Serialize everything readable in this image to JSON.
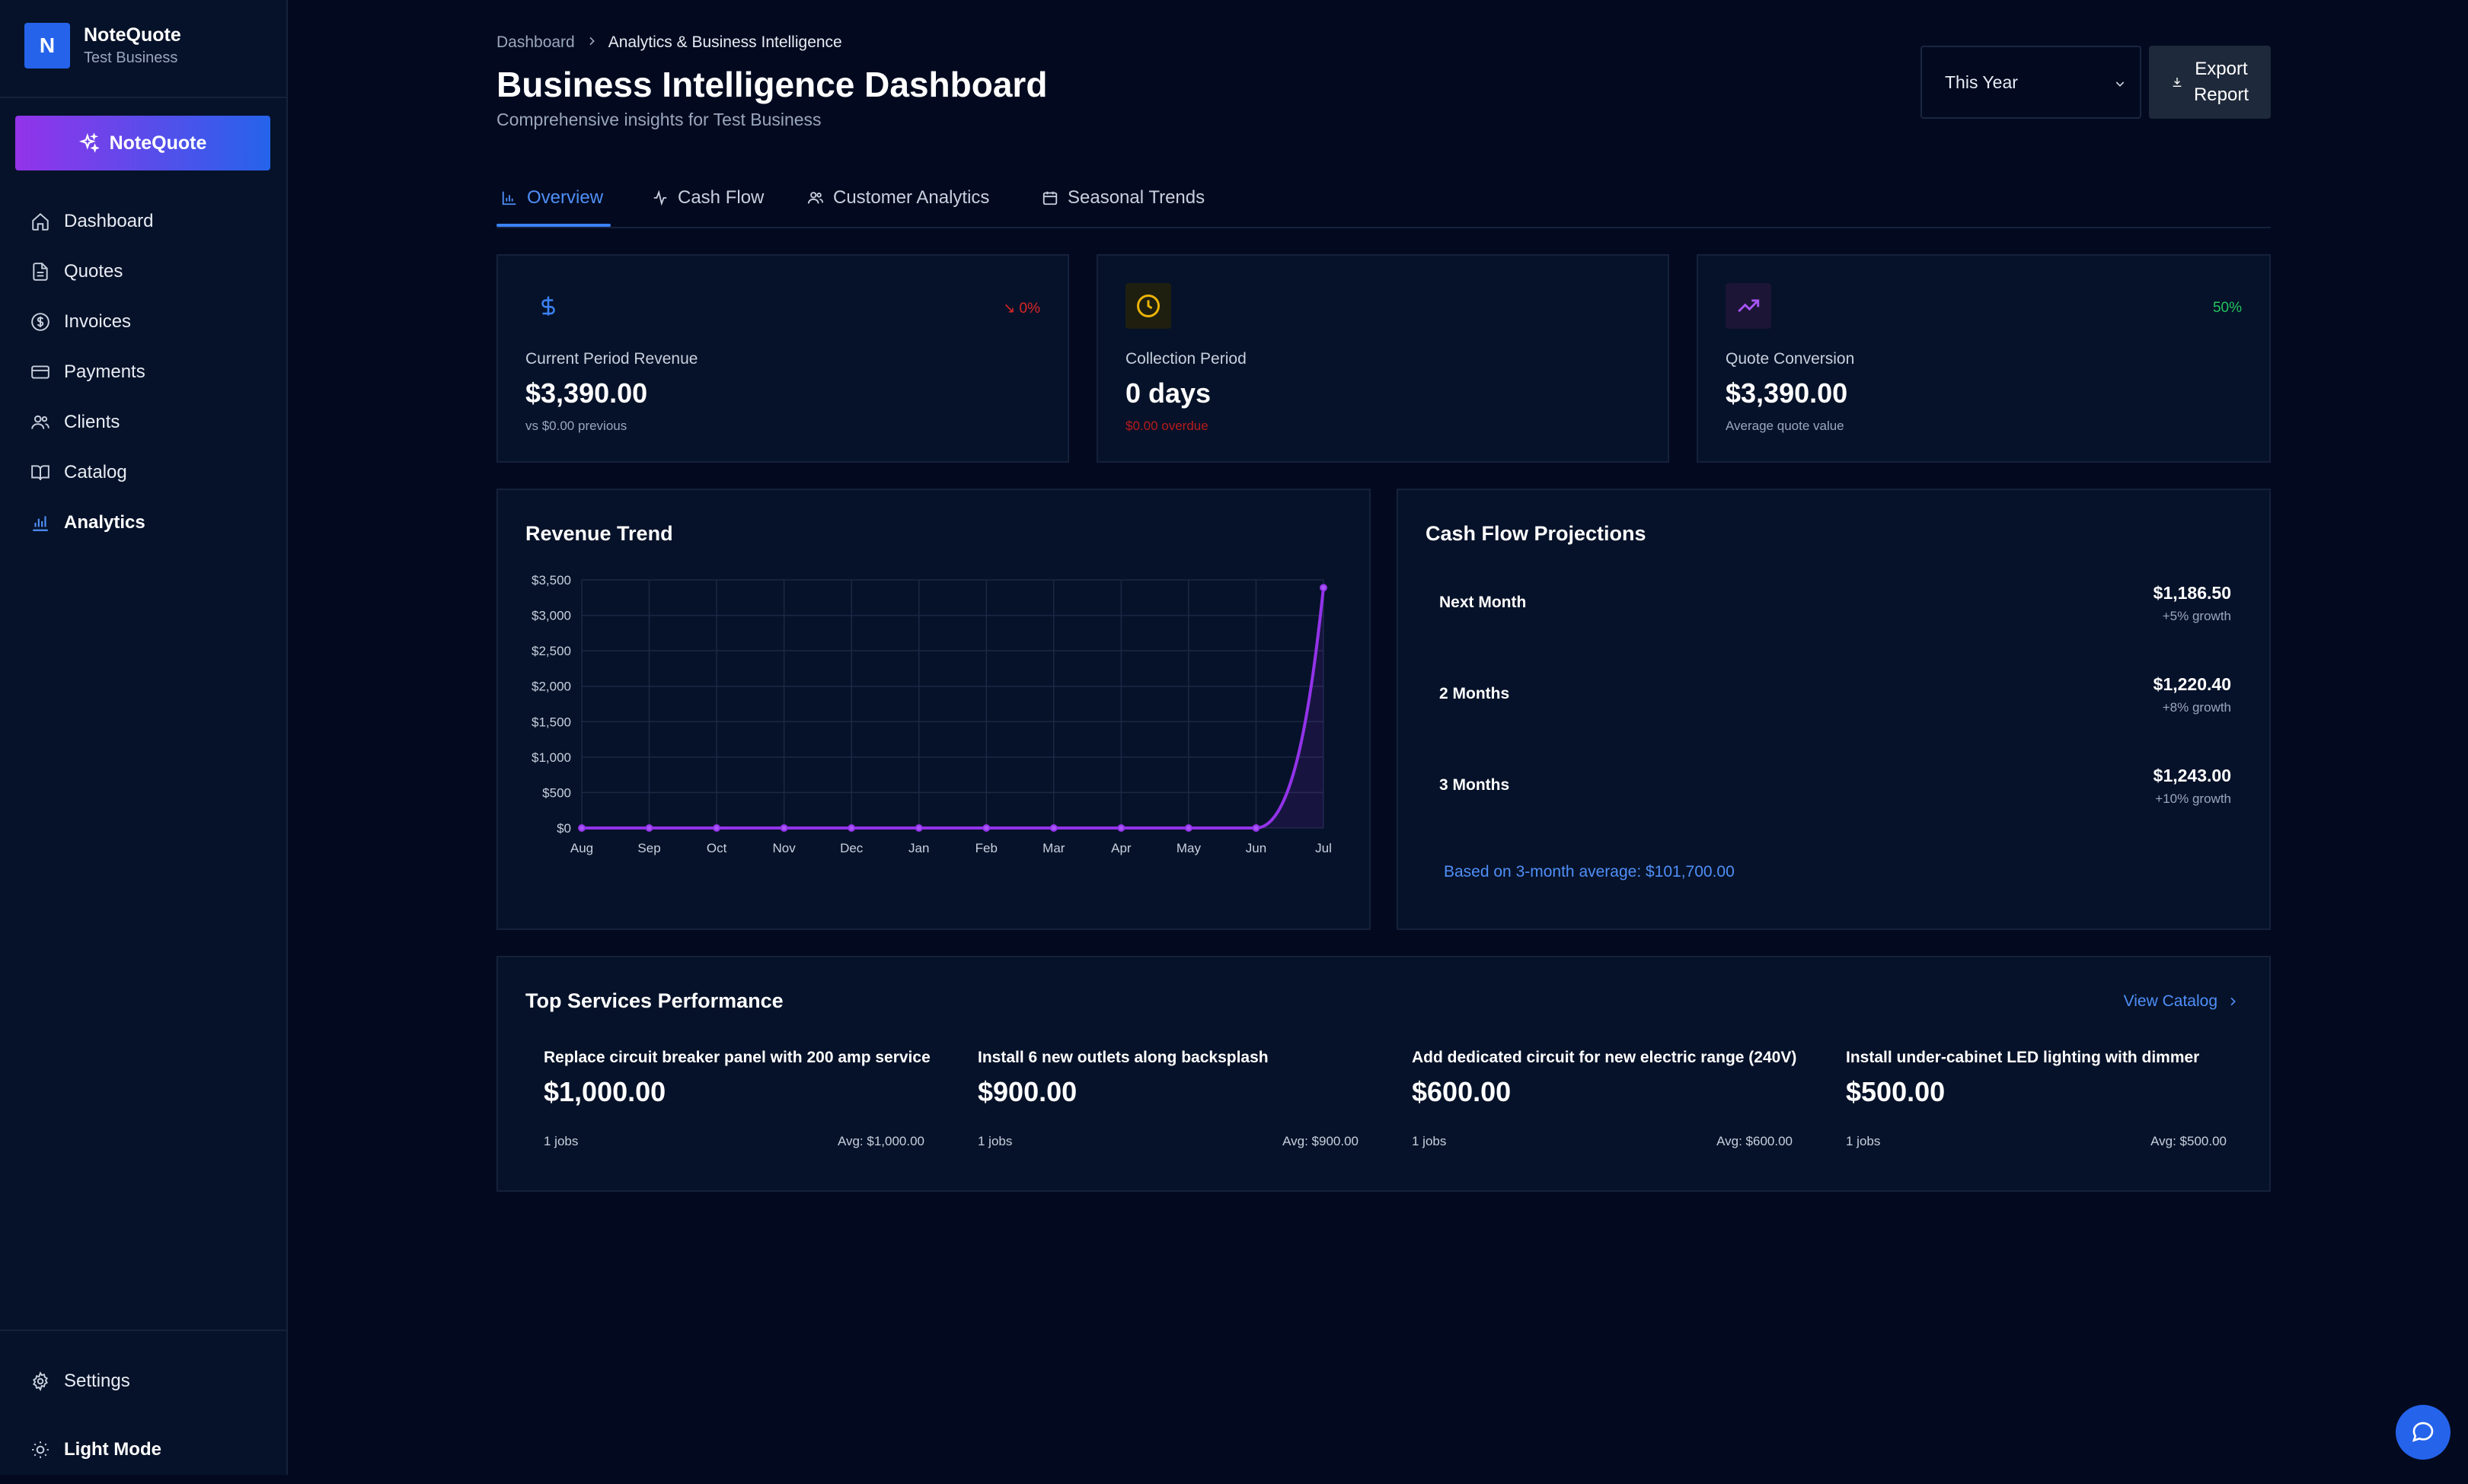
{
  "brand": {
    "logo_letter": "N",
    "name": "NoteQuote",
    "business": "Test Business"
  },
  "sidebar": {
    "cta_label": "NoteQuote",
    "items": [
      {
        "label": "Dashboard",
        "icon": "home-icon"
      },
      {
        "label": "Quotes",
        "icon": "file-icon"
      },
      {
        "label": "Invoices",
        "icon": "dollar-circle-icon"
      },
      {
        "label": "Payments",
        "icon": "credit-card-icon"
      },
      {
        "label": "Clients",
        "icon": "users-icon"
      },
      {
        "label": "Catalog",
        "icon": "book-icon"
      },
      {
        "label": "Analytics",
        "icon": "bar-chart-icon",
        "active": true
      }
    ],
    "settings_label": "Settings",
    "theme_label": "Light Mode"
  },
  "breadcrumb": {
    "parent": "Dashboard",
    "current": "Analytics & Business Intelligence"
  },
  "header": {
    "title": "Business Intelligence Dashboard",
    "subtitle": "Comprehensive insights for Test Business",
    "period_value": "This Year",
    "export_line1": "Export",
    "export_line2": "Report"
  },
  "tabs": [
    {
      "label": "Overview",
      "active": true
    },
    {
      "label": "Cash Flow"
    },
    {
      "label": "Customer Analytics"
    },
    {
      "label": "Seasonal Trends"
    }
  ],
  "stats": [
    {
      "label": "Current Period Revenue",
      "value": "$3,390.00",
      "note": "vs $0.00 previous",
      "badge": "↘ 0%",
      "badge_color": "#dc2626"
    },
    {
      "label": "Collection Period",
      "value": "0 days",
      "note": "$0.00 overdue",
      "note_color": "#dc2626"
    },
    {
      "label": "Quote Conversion",
      "value": "$3,390.00",
      "note": "Average quote value",
      "badge": "50%",
      "badge_color": "#22c55e"
    }
  ],
  "revenue_trend": {
    "title": "Revenue Trend"
  },
  "chart_data": {
    "type": "line",
    "title": "Revenue Trend",
    "categories": [
      "Aug",
      "Sep",
      "Oct",
      "Nov",
      "Dec",
      "Jan",
      "Feb",
      "Mar",
      "Apr",
      "May",
      "Jun",
      "Jul"
    ],
    "series": [
      {
        "values": [
          0,
          0,
          0,
          0,
          0,
          0,
          0,
          0,
          0,
          0,
          0,
          3390
        ]
      }
    ],
    "ylim": [
      0,
      3500
    ],
    "yticks": [
      "$0",
      "$500",
      "$1,000",
      "$1,500",
      "$2,000",
      "$2,500",
      "$3,000",
      "$3,500"
    ],
    "grid": true,
    "color": "#9333ea"
  },
  "cash_flow": {
    "title": "Cash Flow Projections",
    "rows": [
      {
        "label": "Next Month",
        "amount": "$1,186.50",
        "growth": "+5% growth"
      },
      {
        "label": "2 Months",
        "amount": "$1,220.40",
        "growth": "+8% growth"
      },
      {
        "label": "3 Months",
        "amount": "$1,243.00",
        "growth": "+10% growth"
      }
    ],
    "note": "Based on 3-month average: $101,700.00"
  },
  "top_services": {
    "title": "Top Services Performance",
    "view_label": "View Catalog",
    "items": [
      {
        "name": "Replace circuit breaker panel with 200 amp service",
        "amount": "$1,000.00",
        "jobs": "1 jobs",
        "avg": "Avg: $1,000.00"
      },
      {
        "name": "Install 6 new outlets along backsplash",
        "amount": "$900.00",
        "jobs": "1 jobs",
        "avg": "Avg: $900.00"
      },
      {
        "name": "Add dedicated circuit for new electric range (240V)",
        "amount": "$600.00",
        "jobs": "1 jobs",
        "avg": "Avg: $600.00"
      },
      {
        "name": "Install under-cabinet LED lighting with dimmer",
        "amount": "$500.00",
        "jobs": "1 jobs",
        "avg": "Avg: $500.00"
      }
    ]
  },
  "colors": {
    "accent": "#3b82f6",
    "purple": "#9333ea",
    "background": "#030a1f",
    "card": "#061229"
  }
}
